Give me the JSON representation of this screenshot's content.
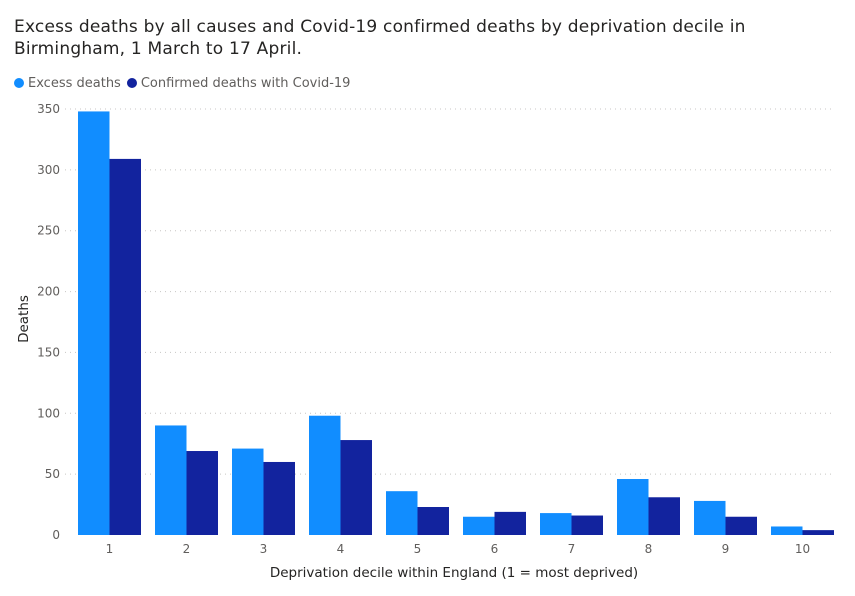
{
  "chart_data": {
    "type": "bar",
    "title": "Excess deaths by all causes and Covid-19 confirmed deaths by deprivation decile in Birmingham, 1 March to 17 April.",
    "xlabel": "Deprivation decile within England (1 = most deprived)",
    "ylabel": "Deaths",
    "categories": [
      "1",
      "2",
      "3",
      "4",
      "5",
      "6",
      "7",
      "8",
      "9",
      "10"
    ],
    "yticks": [
      "0",
      "50",
      "100",
      "150",
      "200",
      "250",
      "300",
      "350"
    ],
    "ylim": [
      0,
      350
    ],
    "grid": true,
    "legend_position": "top-left",
    "series": [
      {
        "name": "Excess deaths",
        "color": "#118DFF",
        "values": [
          348,
          90,
          71,
          98,
          36,
          15,
          18,
          46,
          28,
          7
        ]
      },
      {
        "name": "Confirmed deaths with Covid-19",
        "color": "#12239E",
        "values": [
          309,
          69,
          60,
          78,
          23,
          19,
          16,
          31,
          15,
          4
        ]
      }
    ]
  }
}
